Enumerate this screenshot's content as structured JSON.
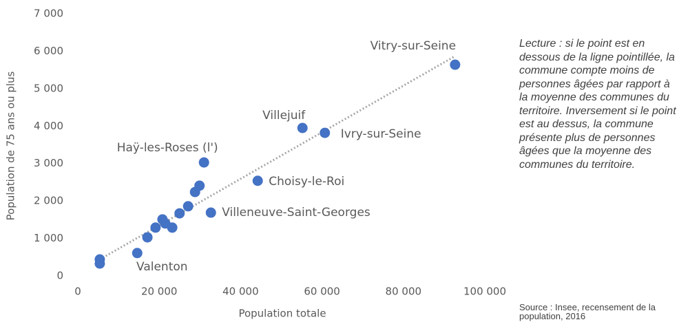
{
  "chart_data": {
    "type": "scatter",
    "x_label": "Population totale",
    "y_label": "Population de 75 ans ou plus",
    "x": [
      5400,
      5400,
      14600,
      17100,
      19100,
      20800,
      21500,
      23200,
      25000,
      27100,
      28800,
      29900,
      31000,
      32700,
      44200,
      55200,
      60700,
      92700
    ],
    "values": [
      330,
      440,
      610,
      1030,
      1290,
      1510,
      1400,
      1290,
      1670,
      1860,
      2240,
      2410,
      3030,
      1690,
      2540,
      3950,
      3820,
      5640
    ],
    "labels": [
      null,
      null,
      "Valenton",
      null,
      null,
      null,
      null,
      null,
      null,
      null,
      null,
      null,
      "Haÿ-les-Roses (l')",
      "Villeneuve-Saint-Georges",
      "Choisy-le-Roi",
      "Villejuif",
      "Ivry-sur-Seine",
      "Vitry-sur-Seine"
    ],
    "color": "#4472c4",
    "trendline": {
      "x": [
        5400,
        92700
      ],
      "values": [
        440,
        5870
      ],
      "color": "#a6a6a6"
    },
    "xlim": [
      0,
      100000
    ],
    "xticks": [
      0,
      {
        "value": 20000,
        "label": "20 000"
      },
      {
        "value": 40000,
        "label": "40 000"
      },
      {
        "value": 60000,
        "label": "60 000"
      },
      {
        "value": 80000,
        "label": "80 000"
      },
      {
        "value": 100000,
        "label": "100 000"
      }
    ],
    "ylim": [
      0,
      7000
    ],
    "yticks": [
      0,
      {
        "value": 1000,
        "label": "1 000"
      },
      {
        "value": 2000,
        "label": "2 000"
      },
      {
        "value": 3000,
        "label": "3 000"
      },
      {
        "value": 4000,
        "label": "4 000"
      },
      {
        "value": 5000,
        "label": "5 000"
      },
      {
        "value": 6000,
        "label": "6 000"
      },
      {
        "value": 7000,
        "label": "7 000"
      }
    ],
    "grid": false,
    "annotation": "Lecture : si le point est en dessous de la ligne pointillée, la commune compte moins de personnes âgées par rapport à la moyenne des communes du territoire. Inversement si le point est au dessus, la commune présente plus de personnes âgées que la moyenne des communes du territoire.",
    "source": "Source : Insee, recensement de la population, 2016"
  }
}
